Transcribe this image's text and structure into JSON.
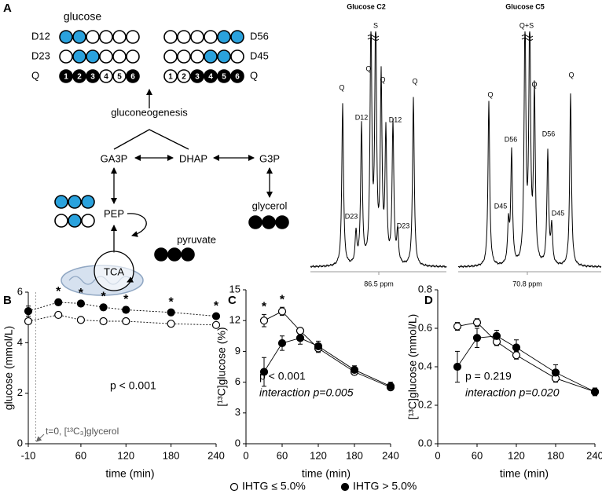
{
  "panel_labels": [
    "A",
    "B",
    "C",
    "D"
  ],
  "diagram": {
    "product": "glucose",
    "left_rows": [
      "D12",
      "D23",
      "Q"
    ],
    "right_rows": [
      "D56",
      "D45",
      "Q"
    ],
    "carbon_numbers": [
      "1",
      "2",
      "3",
      "4",
      "5",
      "6"
    ],
    "pathway": "gluconeogenesis",
    "ga3p": "GA3P",
    "dhap": "DHAP",
    "g3p": "G3P",
    "pep": "PEP",
    "glycerol": "glycerol",
    "pyruvate": "pyruvate",
    "tca": "TCA"
  },
  "spectra": [
    {
      "title": "Glucose C2",
      "ppm": "86.5 ppm",
      "peak_labels": [
        "Q",
        "D23",
        "D12",
        "S",
        "Q",
        "Q",
        "D12",
        "D23",
        "Q"
      ]
    },
    {
      "title": "Glucose C5",
      "ppm": "70.8 ppm",
      "peak_labels": [
        "Q",
        "D45",
        "D56",
        "Q+S",
        "Q",
        "D56",
        "D45",
        "Q"
      ]
    }
  ],
  "chart_data": [
    {
      "type": "line",
      "xlabel": "time (min)",
      "ylabel": "glucose (mmol/L)",
      "x": [
        -10,
        30,
        60,
        90,
        120,
        180,
        240
      ],
      "xlim": [
        -10,
        240
      ],
      "xticks": [
        -10,
        60,
        120,
        180,
        240
      ],
      "ylim": [
        0,
        6
      ],
      "yticks": [
        0,
        2,
        4,
        6
      ],
      "line_style": "dotted",
      "series": [
        {
          "name": "IHTG ≤ 5.0%",
          "color": "#000000",
          "marker_fill": "#ffffff",
          "values": [
            4.85,
            5.1,
            4.9,
            4.85,
            4.85,
            4.75,
            4.7
          ],
          "errors": [
            0.08,
            0.08,
            0.07,
            0.07,
            0.07,
            0.07,
            0.07
          ]
        },
        {
          "name": "IHTG > 5.0%",
          "color": "#000000",
          "marker_fill": "#000000",
          "values": [
            5.25,
            5.6,
            5.55,
            5.4,
            5.3,
            5.2,
            5.05
          ],
          "errors": [
            0.2,
            0.12,
            0.12,
            0.12,
            0.12,
            0.1,
            0.1
          ]
        }
      ],
      "significance": {
        "label": "*",
        "x": [
          30,
          60,
          90,
          120,
          180,
          240
        ]
      },
      "annotations": [
        "p < 0.001"
      ],
      "marker_annotation": "t=0, [¹³C₃]glycerol"
    },
    {
      "type": "line",
      "xlabel": "time (min)",
      "ylabel": "[¹³C]glucose (%)",
      "x": [
        30,
        60,
        90,
        120,
        180,
        240
      ],
      "xlim": [
        0,
        240
      ],
      "xticks": [
        0,
        60,
        120,
        180,
        240
      ],
      "ylim": [
        0,
        15
      ],
      "yticks": [
        0,
        3,
        6,
        9,
        12,
        15
      ],
      "line_style": "solid",
      "series": [
        {
          "color": "#000000",
          "marker_fill": "#ffffff",
          "values": [
            12.0,
            12.9,
            11.0,
            9.3,
            7.0,
            5.5
          ],
          "errors": [
            0.6,
            0.4,
            0.3,
            0.4,
            0.3,
            0.3
          ]
        },
        {
          "color": "#000000",
          "marker_fill": "#000000",
          "values": [
            7.0,
            9.8,
            10.3,
            9.5,
            7.2,
            5.6
          ],
          "errors": [
            1.4,
            0.7,
            0.6,
            0.5,
            0.4,
            0.4
          ]
        }
      ],
      "significance": {
        "label": "*",
        "x": [
          30,
          60
        ]
      },
      "annotations": [
        "p < 0.001",
        "interaction p=0.005"
      ]
    },
    {
      "type": "line",
      "xlabel": "time (min)",
      "ylabel": "[¹³C]glucose (mmol/L)",
      "x": [
        30,
        60,
        90,
        120,
        180,
        240
      ],
      "xlim": [
        0,
        240
      ],
      "xticks": [
        0,
        60,
        120,
        180,
        240
      ],
      "ylim": [
        0,
        0.8
      ],
      "yticks": [
        {
          "value": 0,
          "label": "0.0"
        },
        {
          "value": 0.2,
          "label": "0.2"
        },
        {
          "value": 0.4,
          "label": "0.4"
        },
        {
          "value": 0.6,
          "label": "0.6"
        },
        {
          "value": 0.8,
          "label": "0.8"
        }
      ],
      "line_style": "solid",
      "series": [
        {
          "color": "#000000",
          "marker_fill": "#ffffff",
          "values": [
            0.61,
            0.63,
            0.53,
            0.46,
            0.34,
            0.27
          ],
          "errors": [
            0.02,
            0.02,
            0.02,
            0.02,
            0.02,
            0.02
          ]
        },
        {
          "color": "#000000",
          "marker_fill": "#000000",
          "values": [
            0.4,
            0.55,
            0.56,
            0.5,
            0.37,
            0.27
          ],
          "errors": [
            0.08,
            0.05,
            0.03,
            0.04,
            0.04,
            0.02
          ]
        }
      ],
      "annotations": [
        "p = 0.219",
        "interaction p=0.020"
      ]
    }
  ]
}
